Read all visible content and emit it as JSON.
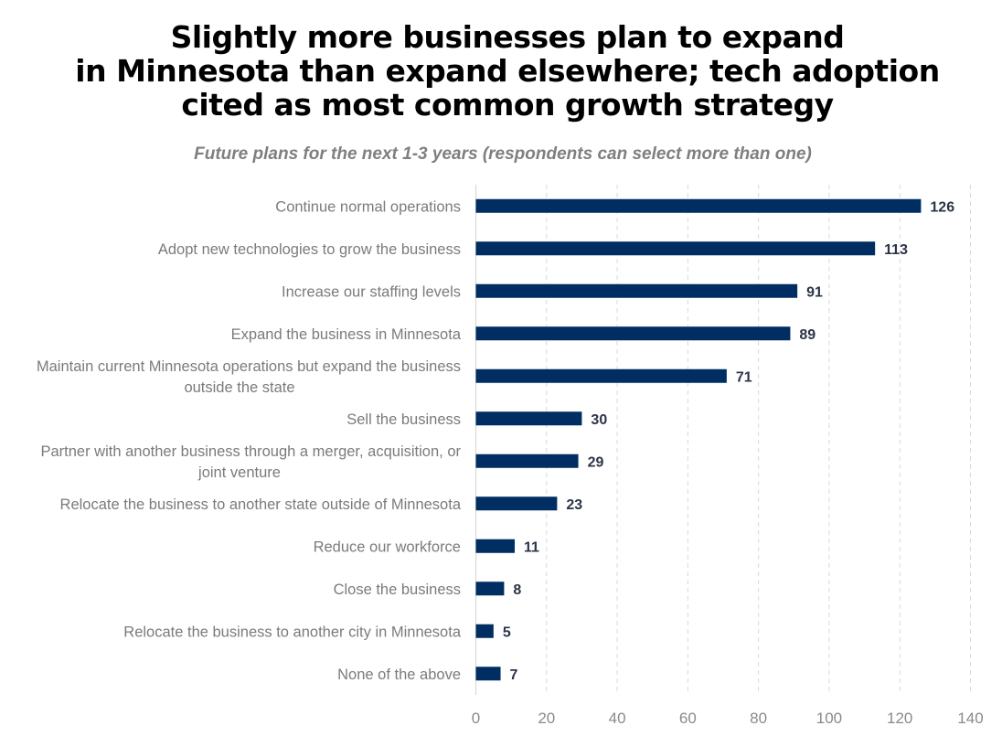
{
  "chart_data": {
    "type": "bar",
    "orientation": "horizontal",
    "title_lines": [
      "Slightly more businesses plan to expand",
      "in Minnesota than expand elsewhere; tech adoption",
      "cited as most common growth strategy"
    ],
    "subtitle": "Future plans for the next 1-3 years (respondents can select more than one)",
    "categories": [
      [
        "Continue normal operations"
      ],
      [
        "Adopt new technologies to grow the business"
      ],
      [
        "Increase our staffing levels"
      ],
      [
        "Expand the business in Minnesota"
      ],
      [
        "Maintain current Minnesota operations but expand the business",
        "outside the state"
      ],
      [
        "Sell the business"
      ],
      [
        "Partner with another business through a merger, acquisition, or",
        "joint venture"
      ],
      [
        "Relocate the business to another state outside of Minnesota"
      ],
      [
        "Reduce our workforce"
      ],
      [
        "Close the business"
      ],
      [
        "Relocate the business to another city in Minnesota"
      ],
      [
        "None of the above"
      ]
    ],
    "values": [
      126,
      113,
      91,
      89,
      71,
      30,
      29,
      23,
      11,
      8,
      5,
      7
    ],
    "xlabel": "",
    "ylabel": "",
    "xlim": [
      0,
      140
    ],
    "xticks": [
      0,
      20,
      40,
      60,
      80,
      100,
      120,
      140
    ],
    "grid": "vertical dashed",
    "legend": "none",
    "bar_color": "#002d62",
    "data_labels": true
  }
}
